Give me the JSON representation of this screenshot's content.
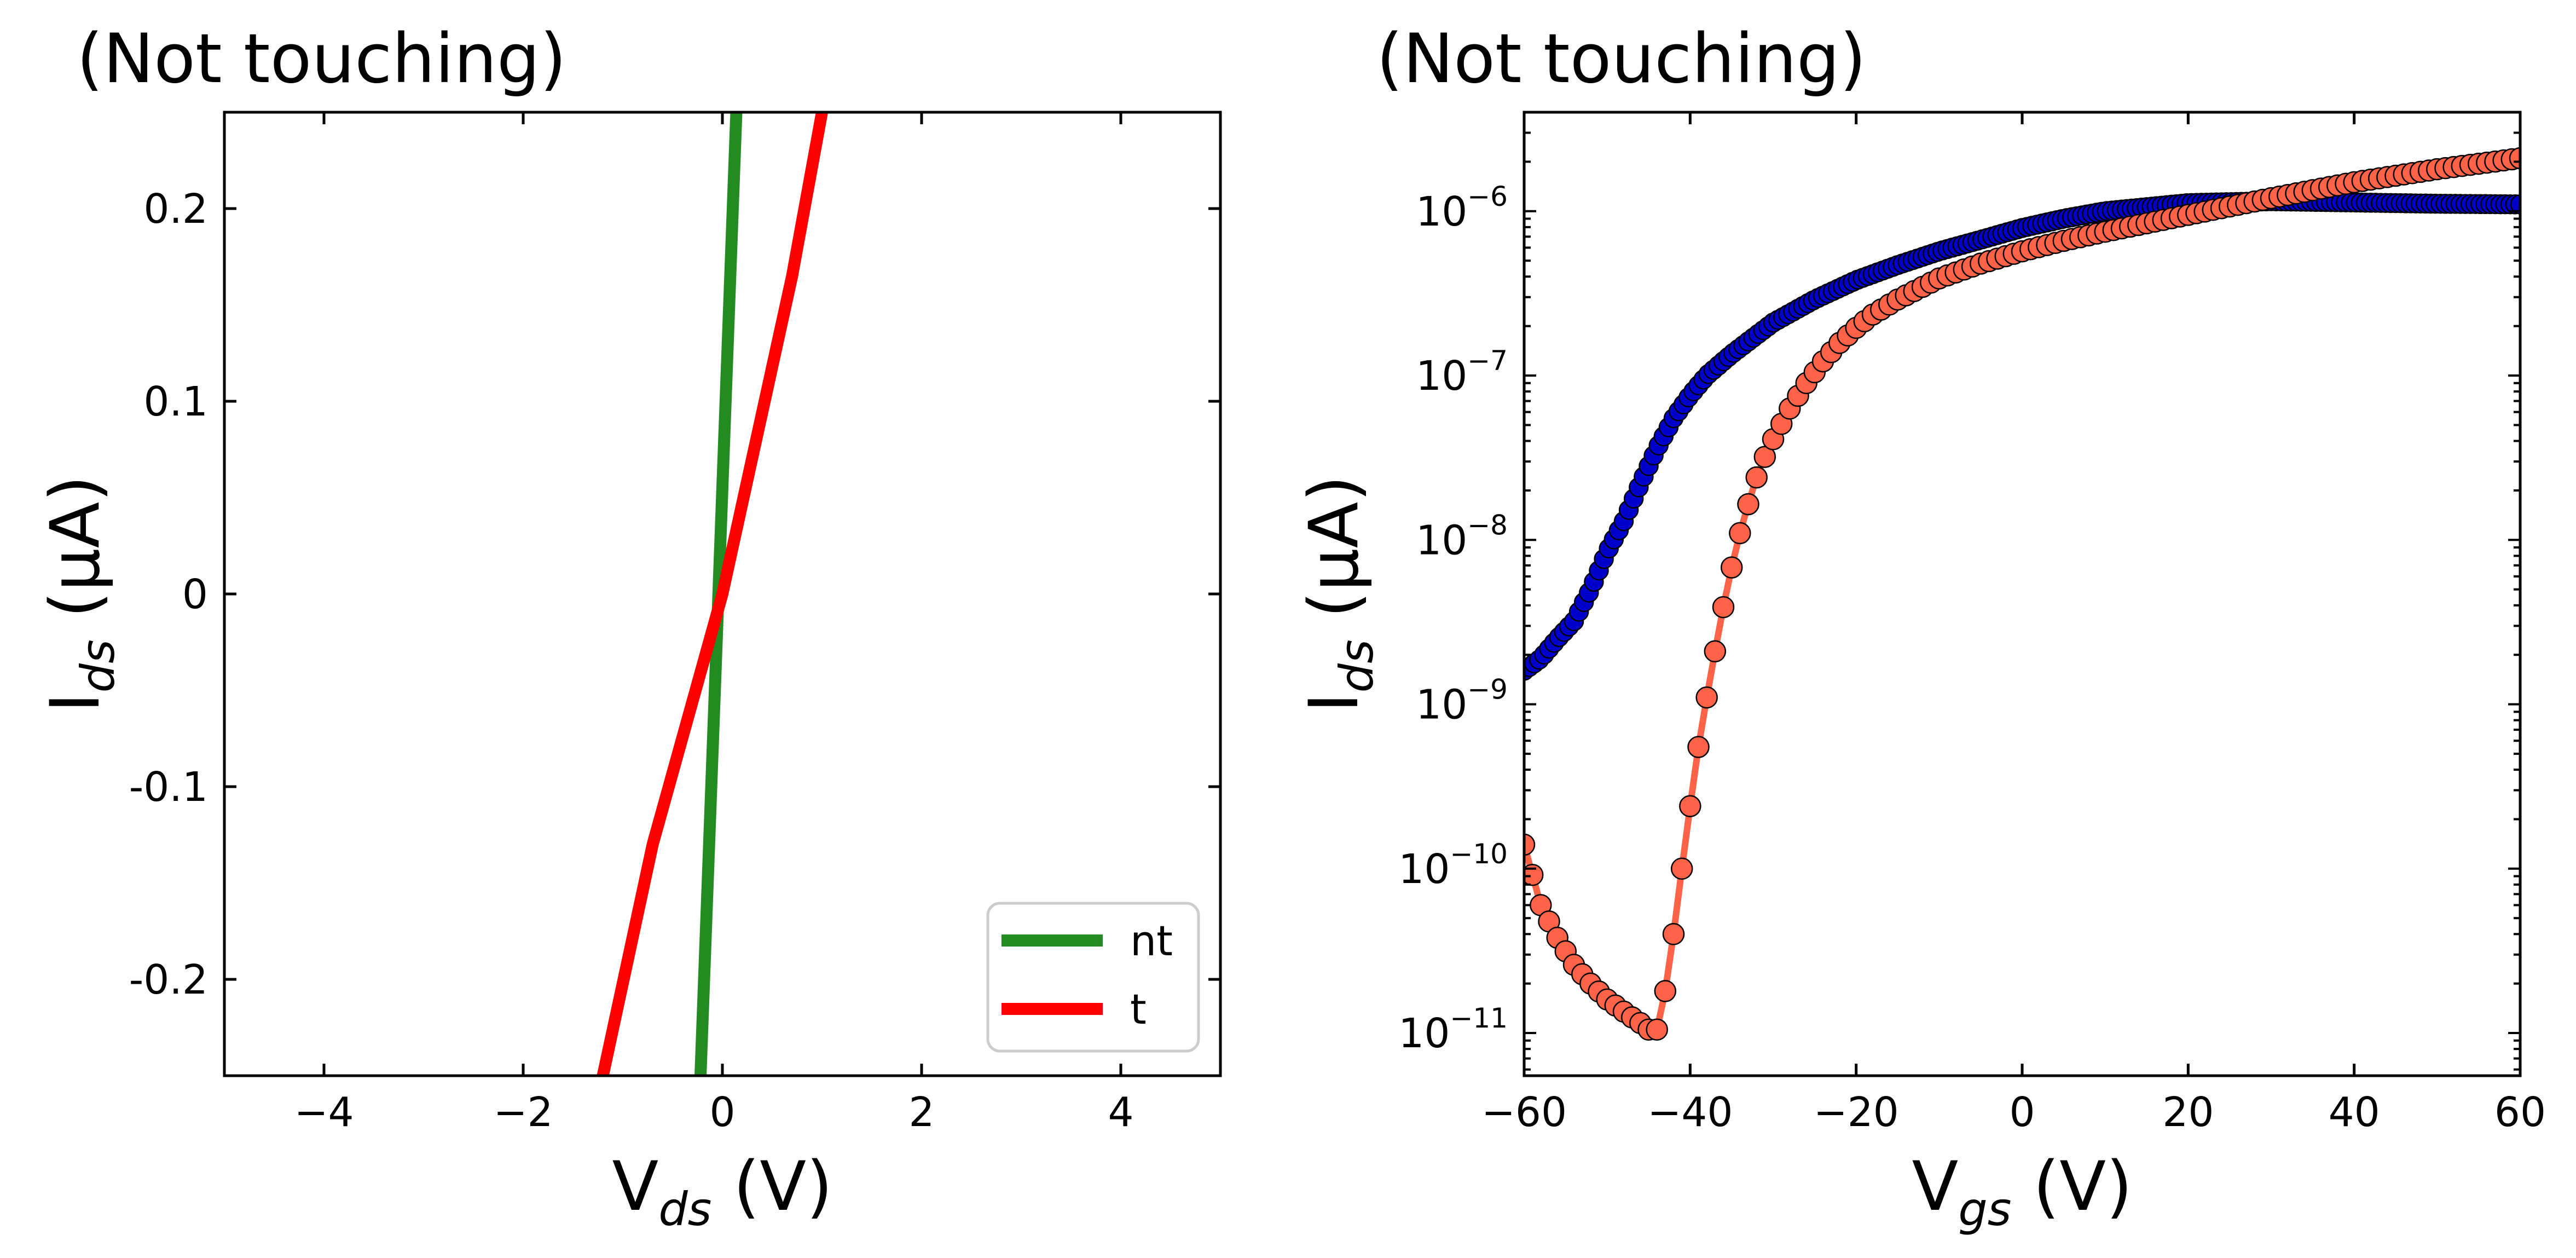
{
  "chart_data": [
    {
      "type": "line",
      "title": "(Not touching)",
      "xlabel": {
        "main": "V",
        "sub": "ds",
        "unit": " (V)"
      },
      "ylabel": {
        "main": "I",
        "sub": "ds",
        "unit": " (μA)"
      },
      "xlim": [
        -5,
        5
      ],
      "ylim": [
        -0.25,
        0.25
      ],
      "xticks": [
        -4,
        -2,
        0,
        2,
        4
      ],
      "xtick_labels": [
        "−4",
        "−2",
        "0",
        "2",
        "4"
      ],
      "yticks": [
        -0.2,
        -0.1,
        0,
        0.1,
        0.2
      ],
      "ytick_labels": [
        "-0.2",
        "-0.1",
        "0",
        "0.1",
        "0.2"
      ],
      "grid": false,
      "legend_position": "bottom-right",
      "series": [
        {
          "name": "nt",
          "color": "#228B22",
          "x": [
            -0.22,
            0.14
          ],
          "y": [
            -0.25,
            0.25
          ]
        },
        {
          "name": "t",
          "color": "#FF0000",
          "x": [
            -1.2,
            -0.7,
            0,
            0.7,
            1.0
          ],
          "y": [
            -0.25,
            -0.13,
            0,
            0.165,
            0.25
          ]
        }
      ]
    },
    {
      "type": "scatter",
      "title": "(Not touching)",
      "xlabel": {
        "main": "V",
        "sub": "gs",
        "unit": " (V)"
      },
      "ylabel": {
        "main": "I",
        "sub": "ds",
        "unit": " (μA)"
      },
      "xlim": [
        -60,
        60
      ],
      "ylim": [
        5.5e-12,
        4e-06
      ],
      "yscale": "log",
      "xticks": [
        -60,
        -40,
        -20,
        0,
        20,
        40,
        60
      ],
      "xtick_labels": [
        "−60",
        "−40",
        "−20",
        "0",
        "20",
        "40",
        "60"
      ],
      "yticks": [
        -11,
        -10,
        -9,
        -8,
        -7,
        -6
      ],
      "ytick_label_base": "10",
      "ytick_exponents": [
        "−11",
        "−10",
        "−9",
        "−8",
        "−7",
        "−6"
      ],
      "grid": false,
      "series": [
        {
          "color": "#0000CD",
          "x": [
            -60,
            -58,
            -56,
            -54,
            -52,
            -50,
            -48,
            -46,
            -44,
            -42,
            -40,
            -38,
            -35,
            -30,
            -25,
            -20,
            -15,
            -10,
            -5,
            0,
            5,
            10,
            20,
            30,
            40,
            50,
            60
          ],
          "y": [
            1.6e-09,
            1.9e-09,
            2.5e-09,
            3.2e-09,
            5e-09,
            8.5e-09,
            1.3e-08,
            2.2e-08,
            3.6e-08,
            5.5e-08,
            7.6e-08,
            1e-07,
            1.35e-07,
            2.1e-07,
            2.9e-07,
            3.8e-07,
            4.7e-07,
            5.7e-07,
            6.7e-07,
            7.9e-07,
            9e-07,
            1e-06,
            1.12e-06,
            1.15e-06,
            1.13e-06,
            1.11e-06,
            1.1e-06
          ]
        },
        {
          "color": "#FF6347",
          "x": [
            -60,
            -58,
            -56,
            -54,
            -52,
            -50,
            -48,
            -46,
            -45,
            -44,
            -43,
            -42,
            -41,
            -40,
            -39,
            -38,
            -37,
            -36,
            -35,
            -34,
            -33,
            -32,
            -31,
            -30,
            -28,
            -26,
            -24,
            -22,
            -20,
            -18,
            -15,
            -10,
            -5,
            0,
            5,
            10,
            20,
            30,
            40,
            50,
            60
          ],
          "y": [
            1.4e-10,
            6e-11,
            3.8e-11,
            2.6e-11,
            2e-11,
            1.6e-11,
            1.35e-11,
            1.15e-11,
            1.05e-11,
            1.05e-11,
            1.8e-11,
            4e-11,
            1e-10,
            2.4e-10,
            5.5e-10,
            1.1e-09,
            2.1e-09,
            3.9e-09,
            6.8e-09,
            1.1e-08,
            1.65e-08,
            2.4e-08,
            3.2e-08,
            4.1e-08,
            6.3e-08,
            9e-08,
            1.22e-07,
            1.58e-07,
            1.95e-07,
            2.35e-07,
            2.9e-07,
            3.9e-07,
            4.8e-07,
            5.7e-07,
            6.6e-07,
            7.5e-07,
            9.5e-07,
            1.2e-06,
            1.5e-06,
            1.8e-06,
            2.1e-06
          ]
        }
      ]
    }
  ]
}
